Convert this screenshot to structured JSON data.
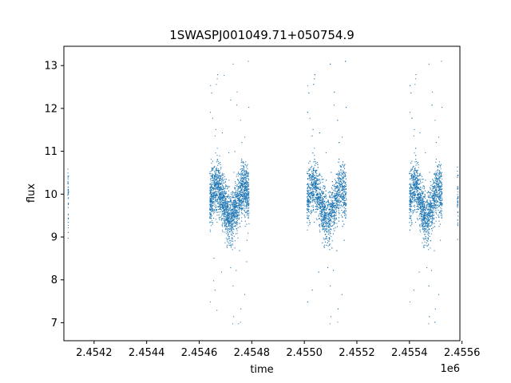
{
  "chart_data": {
    "type": "scatter",
    "title": "1SWASPJ001049.71+050754.9",
    "xlabel": "time",
    "ylabel": "flux",
    "x_offset_label": "1e6",
    "xlim": [
      2454085,
      2455592
    ],
    "ylim": [
      6.58,
      13.45
    ],
    "xticks": [
      2454200,
      2454400,
      2454600,
      2454800,
      2455000,
      2455200,
      2455400,
      2455600
    ],
    "xtick_labels": [
      "2.4542",
      "2.4544",
      "2.4546",
      "2.4548",
      "2.4550",
      "2.4552",
      "2.4554",
      "2.4556"
    ],
    "yticks": [
      7,
      8,
      9,
      10,
      11,
      12,
      13
    ],
    "ytick_labels": [
      "7",
      "8",
      "9",
      "10",
      "11",
      "12",
      "13"
    ],
    "grid": false,
    "marker_color": "#1f77b4",
    "series": [
      {
        "x_ranges": [
          [
            2454100,
            2454103
          ],
          [
            2454640,
            2454790
          ],
          [
            2455010,
            2455160
          ],
          [
            2455400,
            2455525
          ],
          [
            2455582,
            2455585
          ]
        ],
        "y_center": 9.8,
        "y_typical_range": [
          8.3,
          11.3
        ],
        "y_outlier_range": [
          6.9,
          13.2
        ]
      }
    ]
  }
}
